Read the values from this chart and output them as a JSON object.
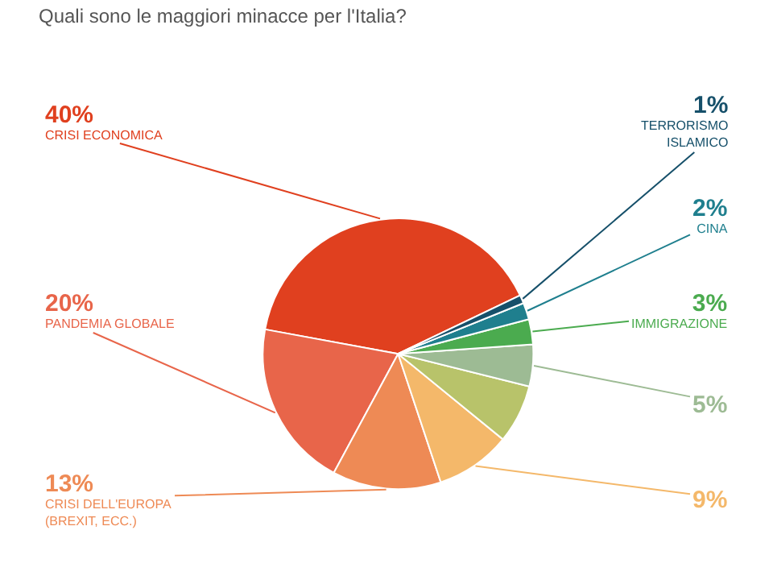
{
  "chart_data": {
    "type": "pie",
    "title": "Quali sono le maggiori minacce per l'Italia?",
    "categories": [
      "CRISI ECONOMICA",
      "PANDEMIA GLOBALE",
      "CRISI DELL'EUROPA (BREXIT, ECC.)",
      null,
      null,
      null,
      "IMMIGRAZIONE",
      "CINA",
      "TERRORISMO ISLAMICO"
    ],
    "values": [
      40,
      20,
      13,
      9,
      7,
      5,
      3,
      2,
      1
    ],
    "value_labels": [
      "40%",
      "20%",
      "13%",
      "9%",
      null,
      "5%",
      "3%",
      "2%",
      "1%"
    ],
    "colors": [
      "#e0401f",
      "#e8654a",
      "#ee8a55",
      "#f4b86a",
      "#b8c36a",
      "#9dbb94",
      "#4bab4f",
      "#1f7f8e",
      "#16506a"
    ]
  }
}
